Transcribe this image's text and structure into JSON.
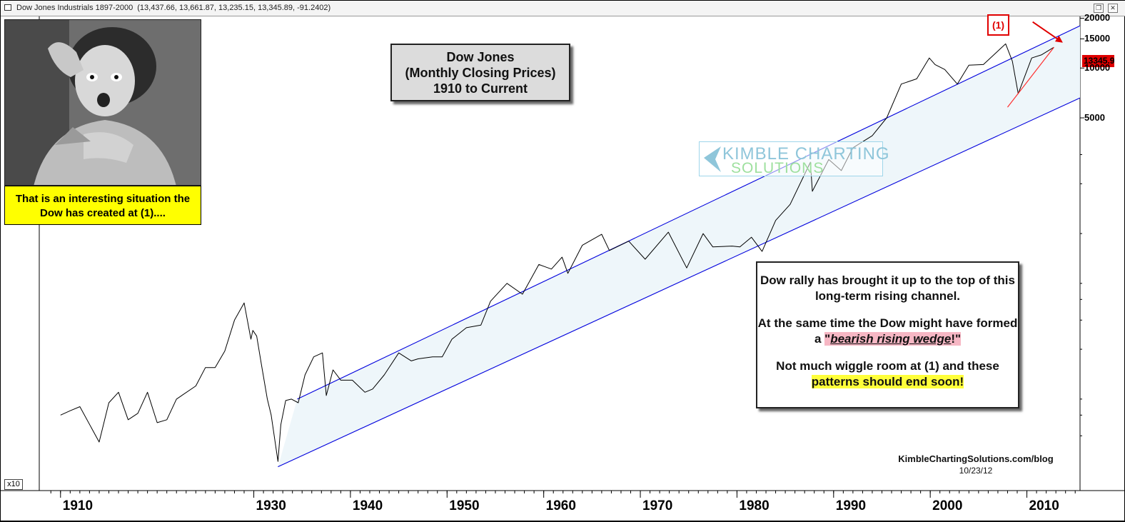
{
  "window": {
    "title": "Dow Jones Industrials 1897-2000",
    "ohlc": "(13,437.66, 13,661.87, 13,235.15, 13,345.89, -91.2402)"
  },
  "photo_caption": "That is an interesting situation the Dow has created at (1)....",
  "chart_title": {
    "line1": "Dow Jones",
    "line2": "(Monthly Closing Prices)",
    "line3": "1910 to Current"
  },
  "commentary": {
    "p1": "Dow rally has brought it up to the top of this long-term rising channel.",
    "p2_pre": "At the same time the Dow might have formed a",
    "p2_hl_open": "\"",
    "p2_hl_em": "bearish rising wedge",
    "p2_hl_close": "!\"",
    "p3_pre": "Not much wiggle room at (1) and these",
    "p3_hl": "patterns should end soon!"
  },
  "credit": {
    "site": "KimbleChartingSolutions.com/blog",
    "date": "10/23/12"
  },
  "watermark": {
    "line1": "KIMBLE CHARTING",
    "line2": "SOLUTIONS"
  },
  "callout_label": "(1)",
  "scale_badge": "x10",
  "last_price_label": "13345.9",
  "colors": {
    "price": "#000000",
    "channel": "#0000dd",
    "wedge": "#ff3030",
    "channel_fill": "#eef6fa",
    "callout": "#e00000",
    "highlight_yellow": "#ffff00",
    "highlight_pink": "#f6b7c4"
  },
  "chart_data": {
    "type": "line",
    "title": "Dow Jones (Monthly Closing Prices) 1910 to Current",
    "xlabel": "",
    "ylabel": "",
    "x_ticks": [
      "1910",
      "1930",
      "1940",
      "1950",
      "1960",
      "1970",
      "1980",
      "1990",
      "2000",
      "2010"
    ],
    "x_tick_years": [
      1910,
      1930,
      1940,
      1950,
      1960,
      1970,
      1980,
      1990,
      2000,
      2010
    ],
    "y_ticks": [
      "20000",
      "15000",
      "10000",
      "5000"
    ],
    "y_tick_values": [
      20000,
      15000,
      10000,
      5000
    ],
    "y_scale": "log",
    "xlim": [
      1907.8,
      2015.5
    ],
    "ylim": [
      28,
      20500
    ],
    "series": [
      {
        "x": [
          1910,
          1911,
          1912,
          1914,
          1915,
          1916,
          1917,
          1918,
          1919,
          1920,
          1921,
          1922,
          1924,
          1925,
          1926,
          1927,
          1928,
          1929,
          1929.7,
          1929.9,
          1930.3,
          1930.8,
          1931.4,
          1931.8,
          1932.5,
          1932.8,
          1933.3,
          1933.9,
          1934.6,
          1935.3,
          1936.2,
          1937.1,
          1937.5,
          1938.2,
          1939,
          1940.2,
          1941.5,
          1942.3,
          1943.5,
          1945,
          1946.3,
          1947,
          1948.5,
          1949.5,
          1950.5,
          1952,
          1953.5,
          1954.5,
          1956.2,
          1957.8,
          1959.5,
          1960.8,
          1961.9,
          1962.5,
          1964,
          1966,
          1966.8,
          1968.8,
          1970.5,
          1972.9,
          1974.8,
          1976.5,
          1977.5,
          1979.5,
          1980.3,
          1981.5,
          1982.6,
          1984,
          1985.5,
          1987.6,
          1987.8,
          1989.5,
          1990.8,
          1992,
          1994,
          1995.5,
          1997,
          1998.6,
          1999.9,
          2000.5,
          2001.5,
          2002.8,
          2004,
          2005.5,
          2007.8,
          2008.5,
          2009.1,
          2010.5,
          2011.5,
          2012.8
        ],
        "y": [
          80,
          85,
          90,
          55,
          95,
          110,
          75,
          82,
          110,
          72,
          75,
          100,
          120,
          155,
          155,
          195,
          300,
          381,
          230,
          260,
          240,
          160,
          100,
          80,
          42,
          70,
          98,
          100,
          95,
          140,
          180,
          190,
          105,
          150,
          130,
          130,
          110,
          115,
          140,
          190,
          170,
          175,
          180,
          180,
          230,
          270,
          280,
          390,
          500,
          430,
          650,
          610,
          720,
          575,
          850,
          990,
          790,
          900,
          700,
          1020,
          620,
          1000,
          830,
          840,
          830,
          950,
          780,
          1200,
          1500,
          2700,
          1800,
          2800,
          2400,
          3300,
          3900,
          5000,
          8000,
          8600,
          11500,
          10500,
          9800,
          8000,
          10400,
          10500,
          14000,
          11000,
          7000,
          11500,
          12000,
          13346
        ]
      }
    ],
    "channel": {
      "upper": [
        [
          1934.5,
          100
        ],
        [
          2015.5,
          18000
        ]
      ],
      "lower": [
        [
          1932.5,
          39
        ],
        [
          2015.5,
          6600
        ]
      ]
    },
    "wedge_support": [
      [
        2008,
        5800
      ],
      [
        2012.8,
        13346
      ]
    ],
    "callout_arrow": [
      [
        2010.6,
        19000
      ],
      [
        2013.6,
        14400
      ]
    ]
  }
}
